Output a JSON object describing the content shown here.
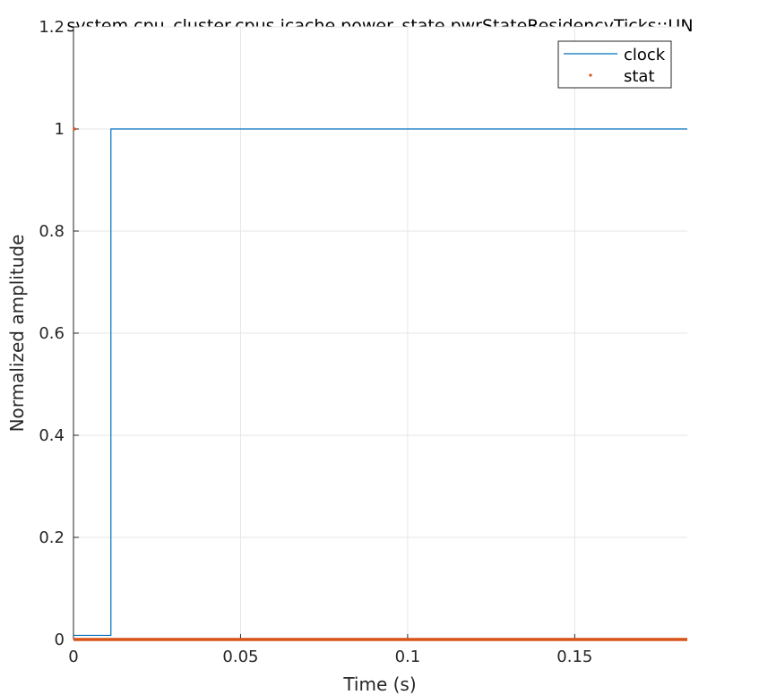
{
  "chart_data": {
    "type": "line",
    "title": "system.cpu_cluster.cpus.icache.power_state.pwrStateResidencyTicks::UN",
    "xlabel": "Time (s)",
    "ylabel": "Normalized amplitude",
    "xlim": [
      0,
      0.1837
    ],
    "ylim": [
      0,
      1.2
    ],
    "x_ticks": [
      0,
      0.05,
      0.1,
      0.15
    ],
    "x_tick_labels": [
      "0",
      "0.05",
      "0.1",
      "0.15"
    ],
    "y_ticks": [
      0,
      0.2,
      0.4,
      0.6,
      0.8,
      1,
      1.2
    ],
    "y_tick_labels": [
      "0",
      "0.2",
      "0.4",
      "0.6",
      "0.8",
      "1",
      "1.2"
    ],
    "grid": true,
    "legend_position": "top-right",
    "series": [
      {
        "name": "clock",
        "style": "step",
        "color": "#0072BD",
        "points": [
          [
            0,
            0.008
          ],
          [
            0.0112,
            0.008
          ],
          [
            0.0112,
            1
          ],
          [
            0.1837,
            1
          ]
        ]
      },
      {
        "name": "stat",
        "style": "markers",
        "color": "#D95319",
        "points": [
          [
            0,
            1
          ],
          [
            0,
            0
          ],
          [
            0.1837,
            0
          ]
        ]
      }
    ],
    "legend": [
      {
        "label": "clock",
        "marker": "line",
        "color": "#0072BD"
      },
      {
        "label": "stat",
        "marker": "dot",
        "color": "#D95319"
      }
    ]
  }
}
